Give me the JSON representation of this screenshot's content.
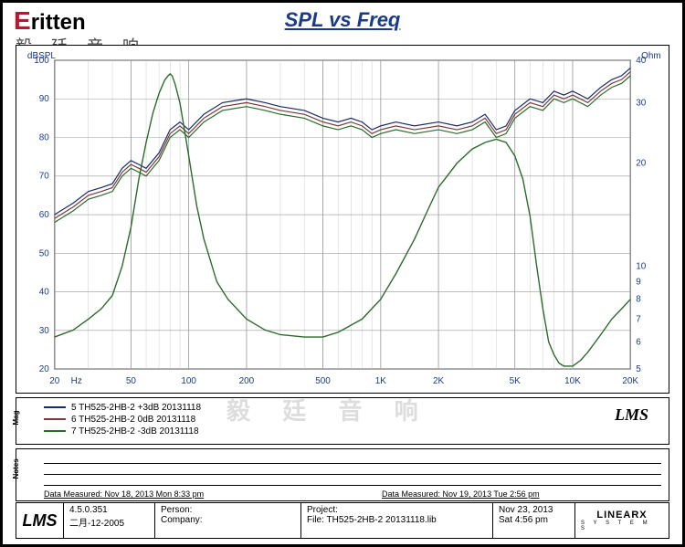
{
  "title": "SPL vs Freq",
  "logo_text": "ritten",
  "logo_sub": "毅 廷 音 响",
  "watermark": "毅 廷 音 响",
  "lms_label": "LMS",
  "axes": {
    "x_label": "Hz",
    "x_ticks": [
      20,
      50,
      100,
      200,
      500,
      "1K",
      "2K",
      "5K",
      "10K",
      "20K"
    ],
    "x_min_hz": 20,
    "x_max_hz": 20000,
    "y_left_label": "dBSPL",
    "y_left_ticks": [
      20,
      30,
      40,
      50,
      60,
      70,
      80,
      90,
      100
    ],
    "y_left_min": 20,
    "y_left_max": 100,
    "y_right_label": "Ohm",
    "y_right_ticks_linear_pos": [
      5,
      6,
      7,
      8,
      9,
      10,
      20,
      30,
      40
    ],
    "y_right_min": 5,
    "y_right_max": 40,
    "grid_color": "#999999",
    "grid_minor_color": "#cccccc",
    "background": "#ffffff",
    "border_color": "#000000"
  },
  "series": [
    {
      "name": "5 TH525-2HB-2 +3dB 20131118",
      "color": "#1a2a6c",
      "width": 1.2,
      "type": "spl",
      "points": [
        [
          20,
          60
        ],
        [
          25,
          63
        ],
        [
          30,
          66
        ],
        [
          35,
          67
        ],
        [
          40,
          68
        ],
        [
          45,
          72
        ],
        [
          50,
          74
        ],
        [
          55,
          73
        ],
        [
          60,
          72
        ],
        [
          70,
          76
        ],
        [
          80,
          82
        ],
        [
          90,
          84
        ],
        [
          100,
          82
        ],
        [
          120,
          86
        ],
        [
          150,
          89
        ],
        [
          200,
          90
        ],
        [
          250,
          89
        ],
        [
          300,
          88
        ],
        [
          400,
          87
        ],
        [
          500,
          85
        ],
        [
          600,
          84
        ],
        [
          700,
          85
        ],
        [
          800,
          84
        ],
        [
          900,
          82
        ],
        [
          1000,
          83
        ],
        [
          1200,
          84
        ],
        [
          1500,
          83
        ],
        [
          2000,
          84
        ],
        [
          2500,
          83
        ],
        [
          3000,
          84
        ],
        [
          3500,
          86
        ],
        [
          4000,
          82
        ],
        [
          4500,
          83
        ],
        [
          5000,
          87
        ],
        [
          6000,
          90
        ],
        [
          7000,
          89
        ],
        [
          8000,
          92
        ],
        [
          9000,
          91
        ],
        [
          10000,
          92
        ],
        [
          12000,
          90
        ],
        [
          14000,
          93
        ],
        [
          16000,
          95
        ],
        [
          18000,
          96
        ],
        [
          20000,
          98
        ]
      ]
    },
    {
      "name": "6 TH525-2HB-2 0dB 20131118",
      "color": "#7a3a3a",
      "width": 1.2,
      "type": "spl",
      "points": [
        [
          20,
          59
        ],
        [
          25,
          62
        ],
        [
          30,
          65
        ],
        [
          35,
          66
        ],
        [
          40,
          67
        ],
        [
          45,
          71
        ],
        [
          50,
          73
        ],
        [
          55,
          72
        ],
        [
          60,
          71
        ],
        [
          70,
          75
        ],
        [
          80,
          81
        ],
        [
          90,
          83
        ],
        [
          100,
          81
        ],
        [
          120,
          85
        ],
        [
          150,
          88
        ],
        [
          200,
          89
        ],
        [
          250,
          88
        ],
        [
          300,
          87
        ],
        [
          400,
          86
        ],
        [
          500,
          84
        ],
        [
          600,
          83
        ],
        [
          700,
          84
        ],
        [
          800,
          83
        ],
        [
          900,
          81
        ],
        [
          1000,
          82
        ],
        [
          1200,
          83
        ],
        [
          1500,
          82
        ],
        [
          2000,
          83
        ],
        [
          2500,
          82
        ],
        [
          3000,
          83
        ],
        [
          3500,
          85
        ],
        [
          4000,
          81
        ],
        [
          4500,
          82
        ],
        [
          5000,
          86
        ],
        [
          6000,
          89
        ],
        [
          7000,
          88
        ],
        [
          8000,
          91
        ],
        [
          9000,
          90
        ],
        [
          10000,
          91
        ],
        [
          12000,
          89
        ],
        [
          14000,
          92
        ],
        [
          16000,
          94
        ],
        [
          18000,
          95
        ],
        [
          20000,
          97
        ]
      ]
    },
    {
      "name": "7 TH525-2HB-2 -3dB 20131118",
      "color": "#2a6b2a",
      "width": 1.2,
      "type": "spl",
      "points": [
        [
          20,
          58
        ],
        [
          25,
          61
        ],
        [
          30,
          64
        ],
        [
          35,
          65
        ],
        [
          40,
          66
        ],
        [
          45,
          70
        ],
        [
          50,
          72
        ],
        [
          55,
          71
        ],
        [
          60,
          70
        ],
        [
          70,
          74
        ],
        [
          80,
          80
        ],
        [
          90,
          82
        ],
        [
          100,
          80
        ],
        [
          120,
          84
        ],
        [
          150,
          87
        ],
        [
          200,
          88
        ],
        [
          250,
          87
        ],
        [
          300,
          86
        ],
        [
          400,
          85
        ],
        [
          500,
          83
        ],
        [
          600,
          82
        ],
        [
          700,
          83
        ],
        [
          800,
          82
        ],
        [
          900,
          80
        ],
        [
          1000,
          81
        ],
        [
          1200,
          82
        ],
        [
          1500,
          81
        ],
        [
          2000,
          82
        ],
        [
          2500,
          81
        ],
        [
          3000,
          82
        ],
        [
          3500,
          84
        ],
        [
          4000,
          80
        ],
        [
          4500,
          81
        ],
        [
          5000,
          85
        ],
        [
          6000,
          88
        ],
        [
          7000,
          87
        ],
        [
          8000,
          90
        ],
        [
          9000,
          89
        ],
        [
          10000,
          90
        ],
        [
          12000,
          88
        ],
        [
          14000,
          91
        ],
        [
          16000,
          93
        ],
        [
          18000,
          94
        ],
        [
          20000,
          96
        ]
      ]
    },
    {
      "name": "impedance",
      "color": "#2a6b2a",
      "width": 1.4,
      "type": "impedance",
      "points": [
        [
          20,
          6.2
        ],
        [
          25,
          6.5
        ],
        [
          30,
          7.0
        ],
        [
          35,
          7.5
        ],
        [
          40,
          8.2
        ],
        [
          45,
          10
        ],
        [
          50,
          13
        ],
        [
          55,
          18
        ],
        [
          60,
          23
        ],
        [
          65,
          28
        ],
        [
          70,
          32
        ],
        [
          75,
          35
        ],
        [
          78,
          36
        ],
        [
          80,
          36.5
        ],
        [
          82,
          36
        ],
        [
          85,
          34
        ],
        [
          90,
          30
        ],
        [
          95,
          25
        ],
        [
          100,
          21
        ],
        [
          110,
          15
        ],
        [
          120,
          12
        ],
        [
          140,
          9
        ],
        [
          160,
          8
        ],
        [
          200,
          7
        ],
        [
          250,
          6.5
        ],
        [
          300,
          6.3
        ],
        [
          400,
          6.2
        ],
        [
          500,
          6.2
        ],
        [
          600,
          6.4
        ],
        [
          800,
          7
        ],
        [
          1000,
          8
        ],
        [
          1200,
          9.5
        ],
        [
          1500,
          12
        ],
        [
          1800,
          15
        ],
        [
          2000,
          17
        ],
        [
          2500,
          20
        ],
        [
          3000,
          22
        ],
        [
          3500,
          23
        ],
        [
          4000,
          23.5
        ],
        [
          4500,
          23
        ],
        [
          5000,
          21
        ],
        [
          5500,
          18
        ],
        [
          6000,
          14
        ],
        [
          6500,
          10
        ],
        [
          7000,
          7.5
        ],
        [
          7500,
          6
        ],
        [
          8000,
          5.5
        ],
        [
          8500,
          5.2
        ],
        [
          9000,
          5.1
        ],
        [
          9500,
          5.1
        ],
        [
          10000,
          5.1
        ],
        [
          11000,
          5.3
        ],
        [
          12000,
          5.6
        ],
        [
          14000,
          6.3
        ],
        [
          16000,
          7.0
        ],
        [
          18000,
          7.5
        ],
        [
          20000,
          8.0
        ]
      ]
    }
  ],
  "legend_label": "Mag",
  "notes_label": "Notes",
  "measured1": "Data Measured: Nov 18, 2013  Mon  8:33 pm",
  "measured2": "Data Measured: Nov 19, 2013  Tue  2:56 pm",
  "footer": {
    "version1": "4.5.0.351",
    "version2": "二月-12-2005",
    "person": "Person:",
    "company": "Company:",
    "project": "Project:",
    "file": "File: TH525-2HB-2 20131118.lib",
    "date1": "Nov 23, 2013",
    "date2": "Sat  4:56 pm",
    "linearx": "LINEARX",
    "linearx_sub": "S Y S T E M S"
  }
}
